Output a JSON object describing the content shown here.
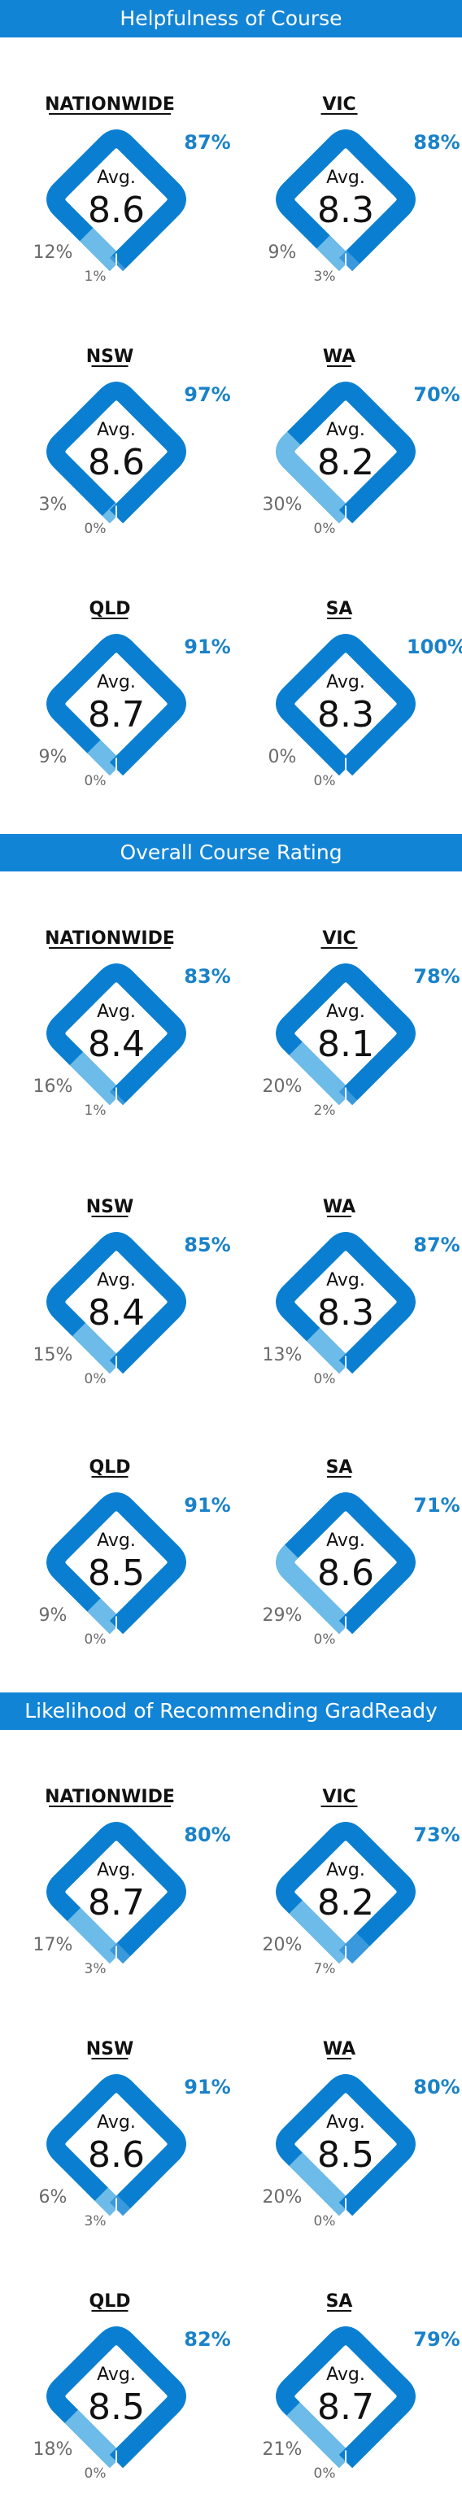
{
  "colors": {
    "dark_blue": "#0a7fd1",
    "light_blue": "#6cbbe8",
    "header_bar": "#1284d6",
    "header_text": "#ffffff",
    "percent_text": "#1a82c9",
    "muted_text": "#6a6a6a",
    "title_text": "#111111"
  },
  "chart_data": [
    {
      "type": "donut-diamond",
      "title": "Helpfulness of Course",
      "avg_label": "Avg.",
      "regions": [
        {
          "name": "NATIONWIDE",
          "avg": "8.6",
          "high_label": "87%",
          "mid_label": "12%",
          "low_label": "1%",
          "high": 87,
          "mid": 12,
          "low": 1
        },
        {
          "name": "VIC",
          "avg": "8.3",
          "high_label": "88%",
          "mid_label": "9%",
          "low_label": "3%",
          "high": 88,
          "mid": 9,
          "low": 3
        },
        {
          "name": "NSW",
          "avg": "8.6",
          "high_label": "97%",
          "mid_label": "3%",
          "low_label": "0%",
          "high": 97,
          "mid": 3,
          "low": 0
        },
        {
          "name": "WA",
          "avg": "8.2",
          "high_label": "70%",
          "mid_label": "30%",
          "low_label": "0%",
          "high": 70,
          "mid": 30,
          "low": 0
        },
        {
          "name": "QLD",
          "avg": "8.7",
          "high_label": "91%",
          "mid_label": "9%",
          "low_label": "0%",
          "high": 91,
          "mid": 9,
          "low": 0
        },
        {
          "name": "SA",
          "avg": "8.3",
          "high_label": "100%",
          "mid_label": "0%",
          "low_label": "0%",
          "high": 100,
          "mid": 0,
          "low": 0
        }
      ]
    },
    {
      "type": "donut-diamond",
      "title": "Overall Course Rating",
      "avg_label": "Avg.",
      "regions": [
        {
          "name": "NATIONWIDE",
          "avg": "8.4",
          "high_label": "83%",
          "mid_label": "16%",
          "low_label": "1%",
          "high": 83,
          "mid": 16,
          "low": 1
        },
        {
          "name": "VIC",
          "avg": "8.1",
          "high_label": "78%",
          "mid_label": "20%",
          "low_label": "2%",
          "high": 78,
          "mid": 20,
          "low": 2
        },
        {
          "name": "NSW",
          "avg": "8.4",
          "high_label": "85%",
          "mid_label": "15%",
          "low_label": "0%",
          "high": 85,
          "mid": 15,
          "low": 0
        },
        {
          "name": "WA",
          "avg": "8.3",
          "high_label": "87%",
          "mid_label": "13%",
          "low_label": "0%",
          "high": 87,
          "mid": 13,
          "low": 0
        },
        {
          "name": "QLD",
          "avg": "8.5",
          "high_label": "91%",
          "mid_label": "9%",
          "low_label": "0%",
          "high": 91,
          "mid": 9,
          "low": 0
        },
        {
          "name": "SA",
          "avg": "8.6",
          "high_label": "71%",
          "mid_label": "29%",
          "low_label": "0%",
          "high": 71,
          "mid": 29,
          "low": 0
        }
      ]
    },
    {
      "type": "donut-diamond",
      "title": "Likelihood of Recommending GradReady",
      "avg_label": "Avg.",
      "regions": [
        {
          "name": "NATIONWIDE",
          "avg": "8.7",
          "high_label": "80%",
          "mid_label": "17%",
          "low_label": "3%",
          "high": 80,
          "mid": 17,
          "low": 3
        },
        {
          "name": "VIC",
          "avg": "8.2",
          "high_label": "73%",
          "mid_label": "20%",
          "low_label": "7%",
          "high": 73,
          "mid": 20,
          "low": 7
        },
        {
          "name": "NSW",
          "avg": "8.6",
          "high_label": "91%",
          "mid_label": "6%",
          "low_label": "3%",
          "high": 91,
          "mid": 6,
          "low": 3
        },
        {
          "name": "WA",
          "avg": "8.5",
          "high_label": "80%",
          "mid_label": "20%",
          "low_label": "0%",
          "high": 80,
          "mid": 20,
          "low": 0
        },
        {
          "name": "QLD",
          "avg": "8.5",
          "high_label": "82%",
          "mid_label": "18%",
          "low_label": "0%",
          "high": 82,
          "mid": 18,
          "low": 0
        },
        {
          "name": "SA",
          "avg": "8.7",
          "high_label": "79%",
          "mid_label": "21%",
          "low_label": "0%",
          "high": 79,
          "mid": 21,
          "low": 0
        }
      ]
    }
  ]
}
